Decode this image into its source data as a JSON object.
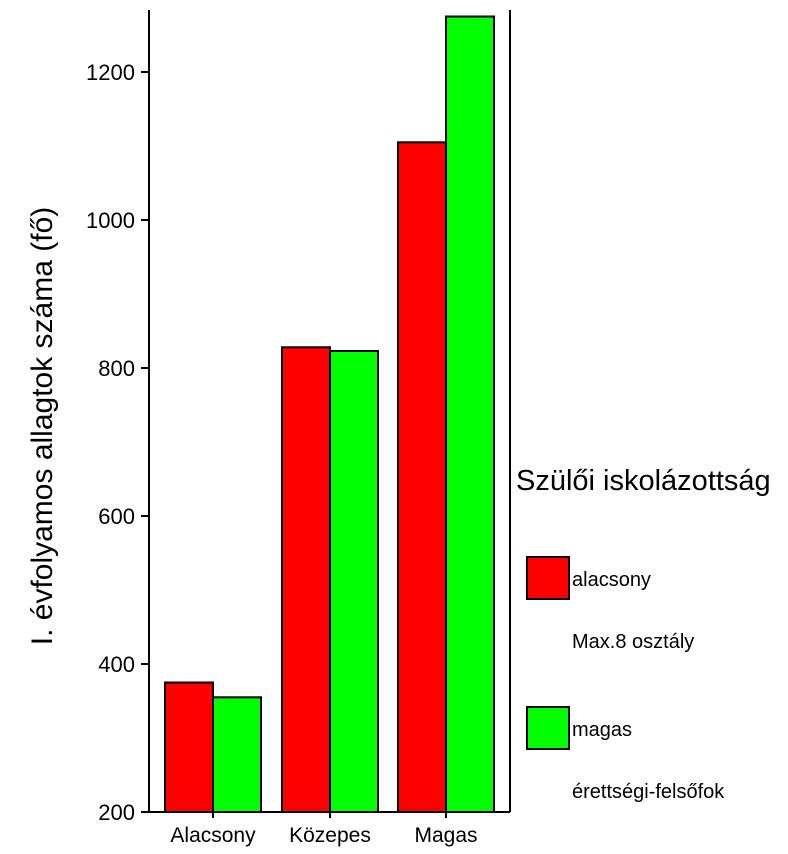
{
  "chart_data": {
    "type": "bar",
    "ylabel": "I. évfolyamos allagtok száma (fő)",
    "xlabel": "",
    "categories": [
      "Alacsony",
      "Közepes",
      "Magas"
    ],
    "ylim": [
      200,
      1280
    ],
    "yticks": [
      200,
      400,
      600,
      800,
      1000,
      1200
    ],
    "grid": false,
    "legend": {
      "title": "Szülői iskolázottság",
      "placement": "right"
    },
    "series": [
      {
        "name": "alacsony",
        "subtitle": "Max.8 osztály",
        "color": "#ff0000",
        "values": [
          375,
          828,
          1105
        ]
      },
      {
        "name": "magas",
        "subtitle": "érettségi-felsőfok",
        "color": "#00ff00",
        "values": [
          355,
          823,
          1275
        ]
      }
    ]
  }
}
